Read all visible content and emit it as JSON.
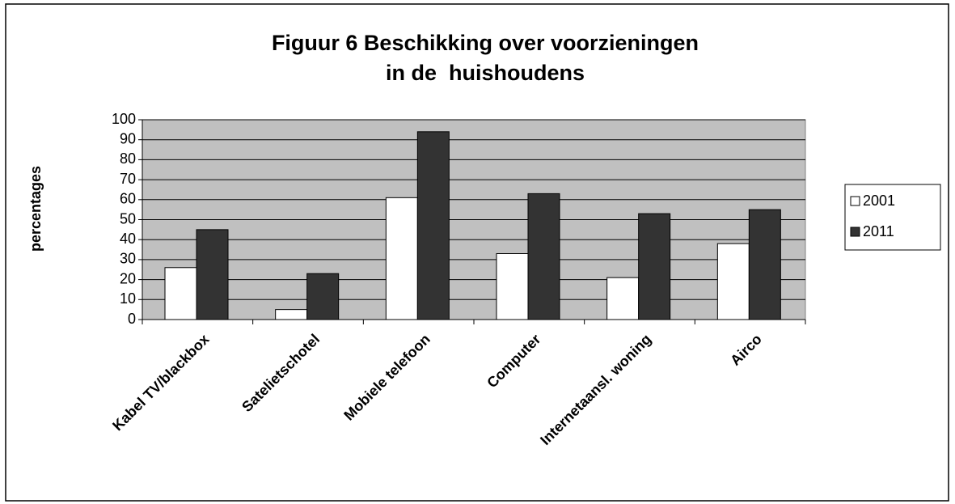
{
  "chart_data": {
    "type": "bar",
    "title": [
      "Figuur 6 Beschikking over voorzieningen",
      "in de  huishoudens"
    ],
    "y_label": "percentages",
    "categories": [
      "Kabel TV/blackbox",
      "Satelietschotel",
      "Mobiele telefoon",
      "Computer",
      "Internetaansl. woning",
      "Airco"
    ],
    "series": [
      {
        "name": "2001",
        "color": "#ffffff",
        "values": [
          26,
          5,
          61,
          33,
          21,
          38
        ]
      },
      {
        "name": "2011",
        "color": "#333333",
        "values": [
          45,
          23,
          94,
          63,
          53,
          55
        ]
      }
    ],
    "ylim": [
      0,
      100
    ],
    "yticks": [
      0,
      10,
      20,
      30,
      40,
      50,
      60,
      70,
      80,
      90,
      100
    ],
    "grid": true,
    "legend": "right"
  }
}
